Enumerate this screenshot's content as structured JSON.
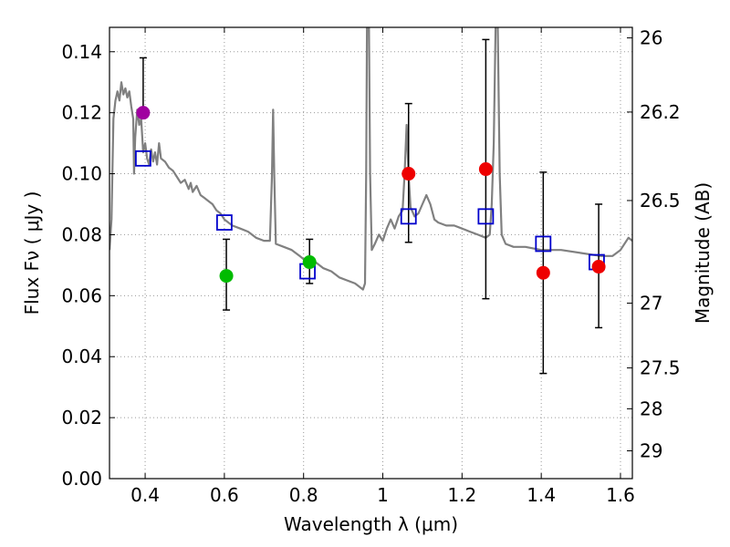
{
  "chart_data": {
    "type": "scatter",
    "xlabel": "Wavelength  λ (μm)",
    "ylabel": "Flux  Fν  ( μJy )",
    "ylabel_right": "Magnitude (AB)",
    "xlim": [
      0.31,
      1.63
    ],
    "ylim": [
      0.0,
      0.148
    ],
    "grid": true,
    "x_ticks": [
      0.4,
      0.6,
      0.8,
      1.0,
      1.2,
      1.4,
      1.6
    ],
    "x_tick_labels": [
      "0.4",
      "0.6",
      "0.8",
      "1",
      "1.2",
      "1.4",
      "1.6"
    ],
    "y_ticks": [
      0.0,
      0.02,
      0.04,
      0.06,
      0.08,
      0.1,
      0.12,
      0.14
    ],
    "y_tick_labels": [
      "0.00",
      "0.02",
      "0.04",
      "0.06",
      "0.08",
      "0.10",
      "0.12",
      "0.14"
    ],
    "right_ticks": [
      {
        "label": "26",
        "mag": 26.0
      },
      {
        "label": "26.2",
        "mag": 26.2
      },
      {
        "label": "26.5",
        "mag": 26.5
      },
      {
        "label": "27",
        "mag": 27.0
      },
      {
        "label": "27.5",
        "mag": 27.5
      },
      {
        "label": "28",
        "mag": 28.0
      },
      {
        "label": "29",
        "mag": 29.0
      }
    ],
    "colors": {
      "sed": "#808080",
      "model": "#0000cc",
      "magenta": "#a000a0",
      "green": "#00bb00",
      "red": "#ee0000",
      "errorbar": "#000000",
      "grid": "#999999"
    },
    "sed": [
      [
        0.31,
        0.075
      ],
      [
        0.315,
        0.085
      ],
      [
        0.32,
        0.118
      ],
      [
        0.325,
        0.124
      ],
      [
        0.33,
        0.127
      ],
      [
        0.335,
        0.124
      ],
      [
        0.34,
        0.13
      ],
      [
        0.345,
        0.126
      ],
      [
        0.35,
        0.128
      ],
      [
        0.355,
        0.125
      ],
      [
        0.36,
        0.127
      ],
      [
        0.365,
        0.122
      ],
      [
        0.37,
        0.118
      ],
      [
        0.372,
        0.1
      ],
      [
        0.375,
        0.112
      ],
      [
        0.38,
        0.121
      ],
      [
        0.385,
        0.116
      ],
      [
        0.39,
        0.118
      ],
      [
        0.395,
        0.107
      ],
      [
        0.4,
        0.11
      ],
      [
        0.405,
        0.105
      ],
      [
        0.41,
        0.103
      ],
      [
        0.415,
        0.108
      ],
      [
        0.42,
        0.104
      ],
      [
        0.425,
        0.107
      ],
      [
        0.43,
        0.103
      ],
      [
        0.435,
        0.11
      ],
      [
        0.44,
        0.105
      ],
      [
        0.45,
        0.104
      ],
      [
        0.46,
        0.102
      ],
      [
        0.47,
        0.101
      ],
      [
        0.48,
        0.099
      ],
      [
        0.49,
        0.097
      ],
      [
        0.5,
        0.098
      ],
      [
        0.51,
        0.095
      ],
      [
        0.515,
        0.097
      ],
      [
        0.52,
        0.094
      ],
      [
        0.53,
        0.096
      ],
      [
        0.54,
        0.093
      ],
      [
        0.55,
        0.092
      ],
      [
        0.56,
        0.091
      ],
      [
        0.57,
        0.09
      ],
      [
        0.58,
        0.088
      ],
      [
        0.59,
        0.087
      ],
      [
        0.6,
        0.085
      ],
      [
        0.62,
        0.083
      ],
      [
        0.64,
        0.082
      ],
      [
        0.66,
        0.081
      ],
      [
        0.68,
        0.079
      ],
      [
        0.7,
        0.078
      ],
      [
        0.715,
        0.078
      ],
      [
        0.72,
        0.099
      ],
      [
        0.723,
        0.121
      ],
      [
        0.726,
        0.099
      ],
      [
        0.73,
        0.077
      ],
      [
        0.75,
        0.076
      ],
      [
        0.77,
        0.075
      ],
      [
        0.79,
        0.073
      ],
      [
        0.8,
        0.072
      ],
      [
        0.81,
        0.072
      ],
      [
        0.83,
        0.071
      ],
      [
        0.85,
        0.069
      ],
      [
        0.87,
        0.068
      ],
      [
        0.89,
        0.066
      ],
      [
        0.91,
        0.065
      ],
      [
        0.93,
        0.064
      ],
      [
        0.94,
        0.063
      ],
      [
        0.95,
        0.062
      ],
      [
        0.955,
        0.064
      ],
      [
        0.958,
        0.1
      ],
      [
        0.96,
        0.15
      ],
      [
        0.965,
        0.15
      ],
      [
        0.968,
        0.1
      ],
      [
        0.972,
        0.075
      ],
      [
        0.98,
        0.077
      ],
      [
        0.99,
        0.08
      ],
      [
        1.0,
        0.078
      ],
      [
        1.01,
        0.082
      ],
      [
        1.02,
        0.085
      ],
      [
        1.03,
        0.082
      ],
      [
        1.04,
        0.086
      ],
      [
        1.05,
        0.088
      ],
      [
        1.055,
        0.1
      ],
      [
        1.06,
        0.116
      ],
      [
        1.065,
        0.1
      ],
      [
        1.07,
        0.089
      ],
      [
        1.08,
        0.086
      ],
      [
        1.09,
        0.087
      ],
      [
        1.1,
        0.09
      ],
      [
        1.11,
        0.093
      ],
      [
        1.12,
        0.09
      ],
      [
        1.13,
        0.085
      ],
      [
        1.14,
        0.084
      ],
      [
        1.16,
        0.083
      ],
      [
        1.18,
        0.083
      ],
      [
        1.2,
        0.082
      ],
      [
        1.22,
        0.081
      ],
      [
        1.24,
        0.08
      ],
      [
        1.26,
        0.079
      ],
      [
        1.27,
        0.08
      ],
      [
        1.275,
        0.09
      ],
      [
        1.28,
        0.11
      ],
      [
        1.285,
        0.15
      ],
      [
        1.29,
        0.15
      ],
      [
        1.295,
        0.1
      ],
      [
        1.3,
        0.08
      ],
      [
        1.31,
        0.077
      ],
      [
        1.33,
        0.076
      ],
      [
        1.36,
        0.076
      ],
      [
        1.4,
        0.075
      ],
      [
        1.45,
        0.075
      ],
      [
        1.5,
        0.074
      ],
      [
        1.55,
        0.073
      ],
      [
        1.58,
        0.073
      ],
      [
        1.6,
        0.075
      ],
      [
        1.62,
        0.079
      ],
      [
        1.63,
        0.078
      ]
    ],
    "model_points": [
      {
        "x": 0.395,
        "y": 0.105
      },
      {
        "x": 0.6,
        "y": 0.084
      },
      {
        "x": 0.81,
        "y": 0.068
      },
      {
        "x": 1.065,
        "y": 0.086
      },
      {
        "x": 1.26,
        "y": 0.086
      },
      {
        "x": 1.405,
        "y": 0.077
      },
      {
        "x": 1.54,
        "y": 0.071
      }
    ],
    "measurements": [
      {
        "x": 0.395,
        "y": 0.12,
        "yerr_low": 0.12,
        "yerr_high": 0.138,
        "color": "magenta"
      },
      {
        "x": 0.605,
        "y": 0.0665,
        "yerr_low": 0.0553,
        "yerr_high": 0.0785,
        "color": "green"
      },
      {
        "x": 0.815,
        "y": 0.071,
        "yerr_low": 0.064,
        "yerr_high": 0.0785,
        "color": "green"
      },
      {
        "x": 1.065,
        "y": 0.1,
        "yerr_low": 0.0775,
        "yerr_high": 0.123,
        "color": "red"
      },
      {
        "x": 1.26,
        "y": 0.1015,
        "yerr_low": 0.059,
        "yerr_high": 0.144,
        "color": "red"
      },
      {
        "x": 1.405,
        "y": 0.0675,
        "yerr_low": 0.0345,
        "yerr_high": 0.1005,
        "color": "red"
      },
      {
        "x": 1.545,
        "y": 0.0695,
        "yerr_low": 0.0495,
        "yerr_high": 0.09,
        "color": "red"
      }
    ]
  }
}
